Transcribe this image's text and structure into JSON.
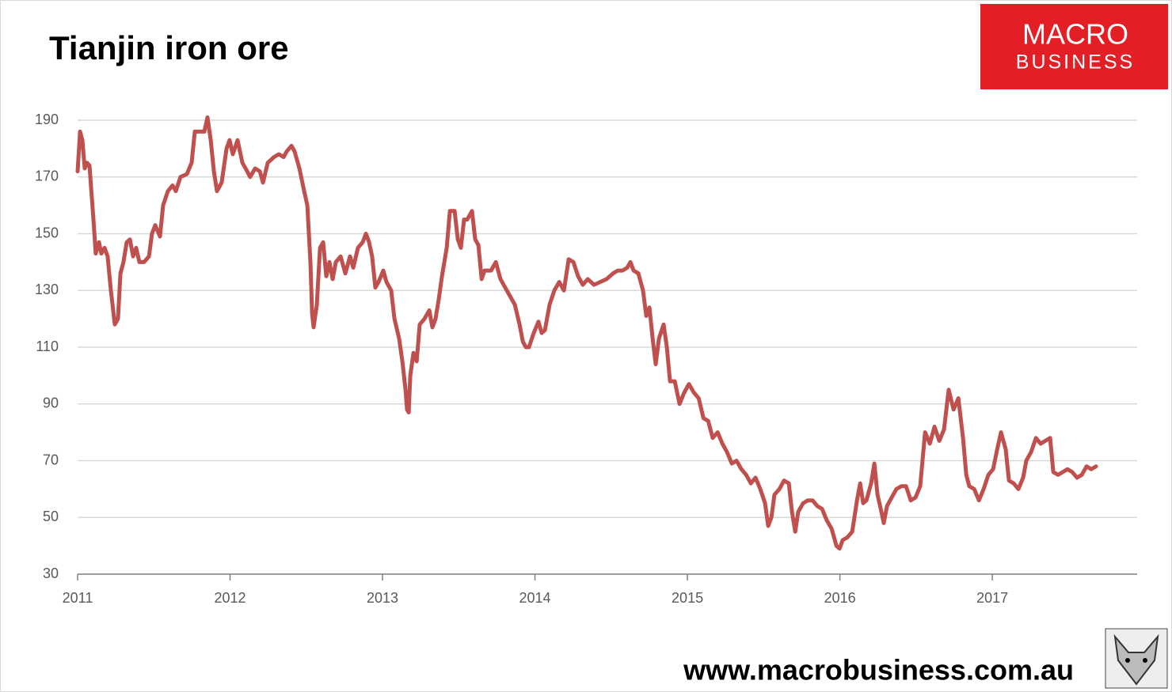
{
  "chart_data": {
    "type": "line",
    "title": "Tianjin iron ore",
    "logo": {
      "line1": "MACRO",
      "line2": "BUSINESS"
    },
    "source": "www.macrobusiness.com.au",
    "color": "#c0504d",
    "grid": true,
    "xlim": [
      2011,
      2017.95
    ],
    "xticks": [
      2011,
      2012,
      2013,
      2014,
      2015,
      2016,
      2017
    ],
    "ylim": [
      30,
      190
    ],
    "yticks": [
      30,
      50,
      70,
      90,
      110,
      130,
      150,
      170,
      190
    ],
    "x": [
      2011.0,
      2011.016,
      2011.031,
      2011.047,
      2011.062,
      2011.078,
      2011.104,
      2011.119,
      2011.14,
      2011.156,
      2011.177,
      2011.197,
      2011.218,
      2011.244,
      2011.265,
      2011.281,
      2011.301,
      2011.322,
      2011.343,
      2011.364,
      2011.384,
      2011.405,
      2011.436,
      2011.468,
      2011.488,
      2011.509,
      2011.54,
      2011.561,
      2011.592,
      2011.623,
      2011.644,
      2011.675,
      2011.717,
      2011.748,
      2011.769,
      2011.8,
      2011.831,
      2011.852,
      2011.873,
      2011.894,
      2011.914,
      2011.945,
      2011.977,
      2011.997,
      2012.018,
      2012.049,
      2012.081,
      2012.112,
      2012.132,
      2012.164,
      2012.195,
      2012.216,
      2012.247,
      2012.288,
      2012.32,
      2012.351,
      2012.372,
      2012.403,
      2012.423,
      2012.455,
      2012.486,
      2012.507,
      2012.527,
      2012.538,
      2012.548,
      2012.569,
      2012.59,
      2012.611,
      2012.631,
      2012.652,
      2012.673,
      2012.694,
      2012.725,
      2012.756,
      2012.787,
      2012.808,
      2012.839,
      2012.87,
      2012.891,
      2012.912,
      2012.932,
      2012.953,
      2012.974,
      2013.005,
      2013.026,
      2013.057,
      2013.078,
      2013.109,
      2013.13,
      2013.151,
      2013.161,
      2013.172,
      2013.182,
      2013.203,
      2013.224,
      2013.244,
      2013.275,
      2013.307,
      2013.327,
      2013.348,
      2013.369,
      2013.39,
      2013.421,
      2013.442,
      2013.473,
      2013.494,
      2013.514,
      2013.535,
      2013.556,
      2013.587,
      2013.608,
      2013.629,
      2013.65,
      2013.67,
      2013.712,
      2013.743,
      2013.774,
      2013.805,
      2013.836,
      2013.868,
      2013.899,
      2013.92,
      2013.94,
      2013.961,
      2013.992,
      2014.023,
      2014.044,
      2014.065,
      2014.096,
      2014.127,
      2014.159,
      2014.19,
      2014.221,
      2014.252,
      2014.283,
      2014.314,
      2014.346,
      2014.387,
      2014.429,
      2014.47,
      2014.512,
      2014.543,
      2014.574,
      2014.605,
      2014.626,
      2014.647,
      2014.678,
      2014.709,
      2014.73,
      2014.751,
      2014.772,
      2014.792,
      2014.813,
      2014.844,
      2014.865,
      2014.886,
      2014.917,
      2014.948,
      2014.979,
      2015.01,
      2015.042,
      2015.074,
      2015.105,
      2015.136,
      2015.166,
      2015.198,
      2015.229,
      2015.26,
      2015.291,
      2015.322,
      2015.354,
      2015.385,
      2015.416,
      2015.447,
      2015.478,
      2015.509,
      2015.53,
      2015.551,
      2015.571,
      2015.603,
      2015.634,
      2015.665,
      2015.686,
      2015.707,
      2015.727,
      2015.759,
      2015.79,
      2015.821,
      2015.852,
      2015.883,
      2015.914,
      2015.946,
      2015.977,
      2015.998,
      2016.018,
      2016.05,
      2016.081,
      2016.112,
      2016.133,
      2016.153,
      2016.174,
      2016.205,
      2016.226,
      2016.247,
      2016.268,
      2016.288,
      2016.309,
      2016.34,
      2016.371,
      2016.403,
      2016.434,
      2016.465,
      2016.496,
      2016.527,
      2016.559,
      2016.59,
      2016.621,
      2016.652,
      2016.683,
      2016.714,
      2016.746,
      2016.777,
      2016.808,
      2016.829,
      2016.849,
      2016.881,
      2016.912,
      2016.943,
      2016.974,
      2017.005,
      2017.036,
      2017.057,
      2017.088,
      2017.109,
      2017.14,
      2017.171,
      2017.202,
      2017.223,
      2017.254,
      2017.286,
      2017.317,
      2017.348,
      2017.379,
      2017.4,
      2017.431,
      2017.462,
      2017.493,
      2017.524,
      2017.556,
      2017.587,
      2017.618,
      2017.649,
      2017.68
    ],
    "values": [
      172,
      186,
      183,
      173,
      175,
      174,
      155,
      143,
      147,
      143,
      145,
      142,
      130,
      118,
      120,
      136,
      140,
      147,
      148,
      142,
      145,
      140,
      140,
      142,
      150,
      153,
      149,
      160,
      165,
      167,
      165,
      170,
      171,
      175,
      186,
      186,
      186,
      191,
      183,
      172,
      165,
      168,
      180,
      183,
      178,
      183,
      175,
      172,
      170,
      173,
      172,
      168,
      175,
      177,
      178,
      177,
      179,
      181,
      179,
      173,
      165,
      160,
      140,
      122,
      117,
      125,
      145,
      147,
      135,
      140,
      134,
      140,
      142,
      136,
      142,
      138,
      145,
      147,
      150,
      147,
      142,
      131,
      133,
      137,
      133,
      130,
      120,
      113,
      105,
      95,
      88,
      87,
      100,
      108,
      105,
      118,
      120,
      123,
      117,
      120,
      127,
      135,
      145,
      158,
      158,
      148,
      145,
      155,
      155,
      158,
      148,
      146,
      134,
      137,
      137,
      140,
      134,
      131,
      128,
      125,
      118,
      112,
      110,
      110,
      115,
      119,
      115,
      116,
      125,
      130,
      133,
      130,
      141,
      140,
      135,
      132,
      134,
      132,
      133,
      134,
      136,
      137,
      137,
      138,
      140,
      137,
      136,
      130,
      121,
      124,
      113,
      104,
      113,
      118,
      110,
      98,
      98,
      90,
      94,
      97,
      94,
      92,
      85,
      84,
      78,
      80,
      76,
      73,
      69,
      70,
      67,
      65,
      62,
      64,
      60,
      55,
      47,
      50,
      58,
      60,
      63,
      62,
      52,
      45,
      52,
      55,
      56,
      56,
      54,
      53,
      49,
      46,
      40,
      39,
      42,
      43,
      45,
      56,
      62,
      55,
      56,
      62,
      69,
      58,
      53,
      48,
      54,
      57,
      60,
      61,
      61,
      56,
      57,
      61,
      80,
      76,
      82,
      77,
      81,
      95,
      88,
      92,
      78,
      65,
      61,
      60,
      56,
      60,
      65,
      67,
      75,
      80,
      74,
      63,
      62,
      60,
      64,
      70,
      73,
      78,
      76,
      77,
      78,
      66,
      65,
      66,
      67,
      66,
      64,
      65,
      68,
      67,
      68
    ]
  }
}
